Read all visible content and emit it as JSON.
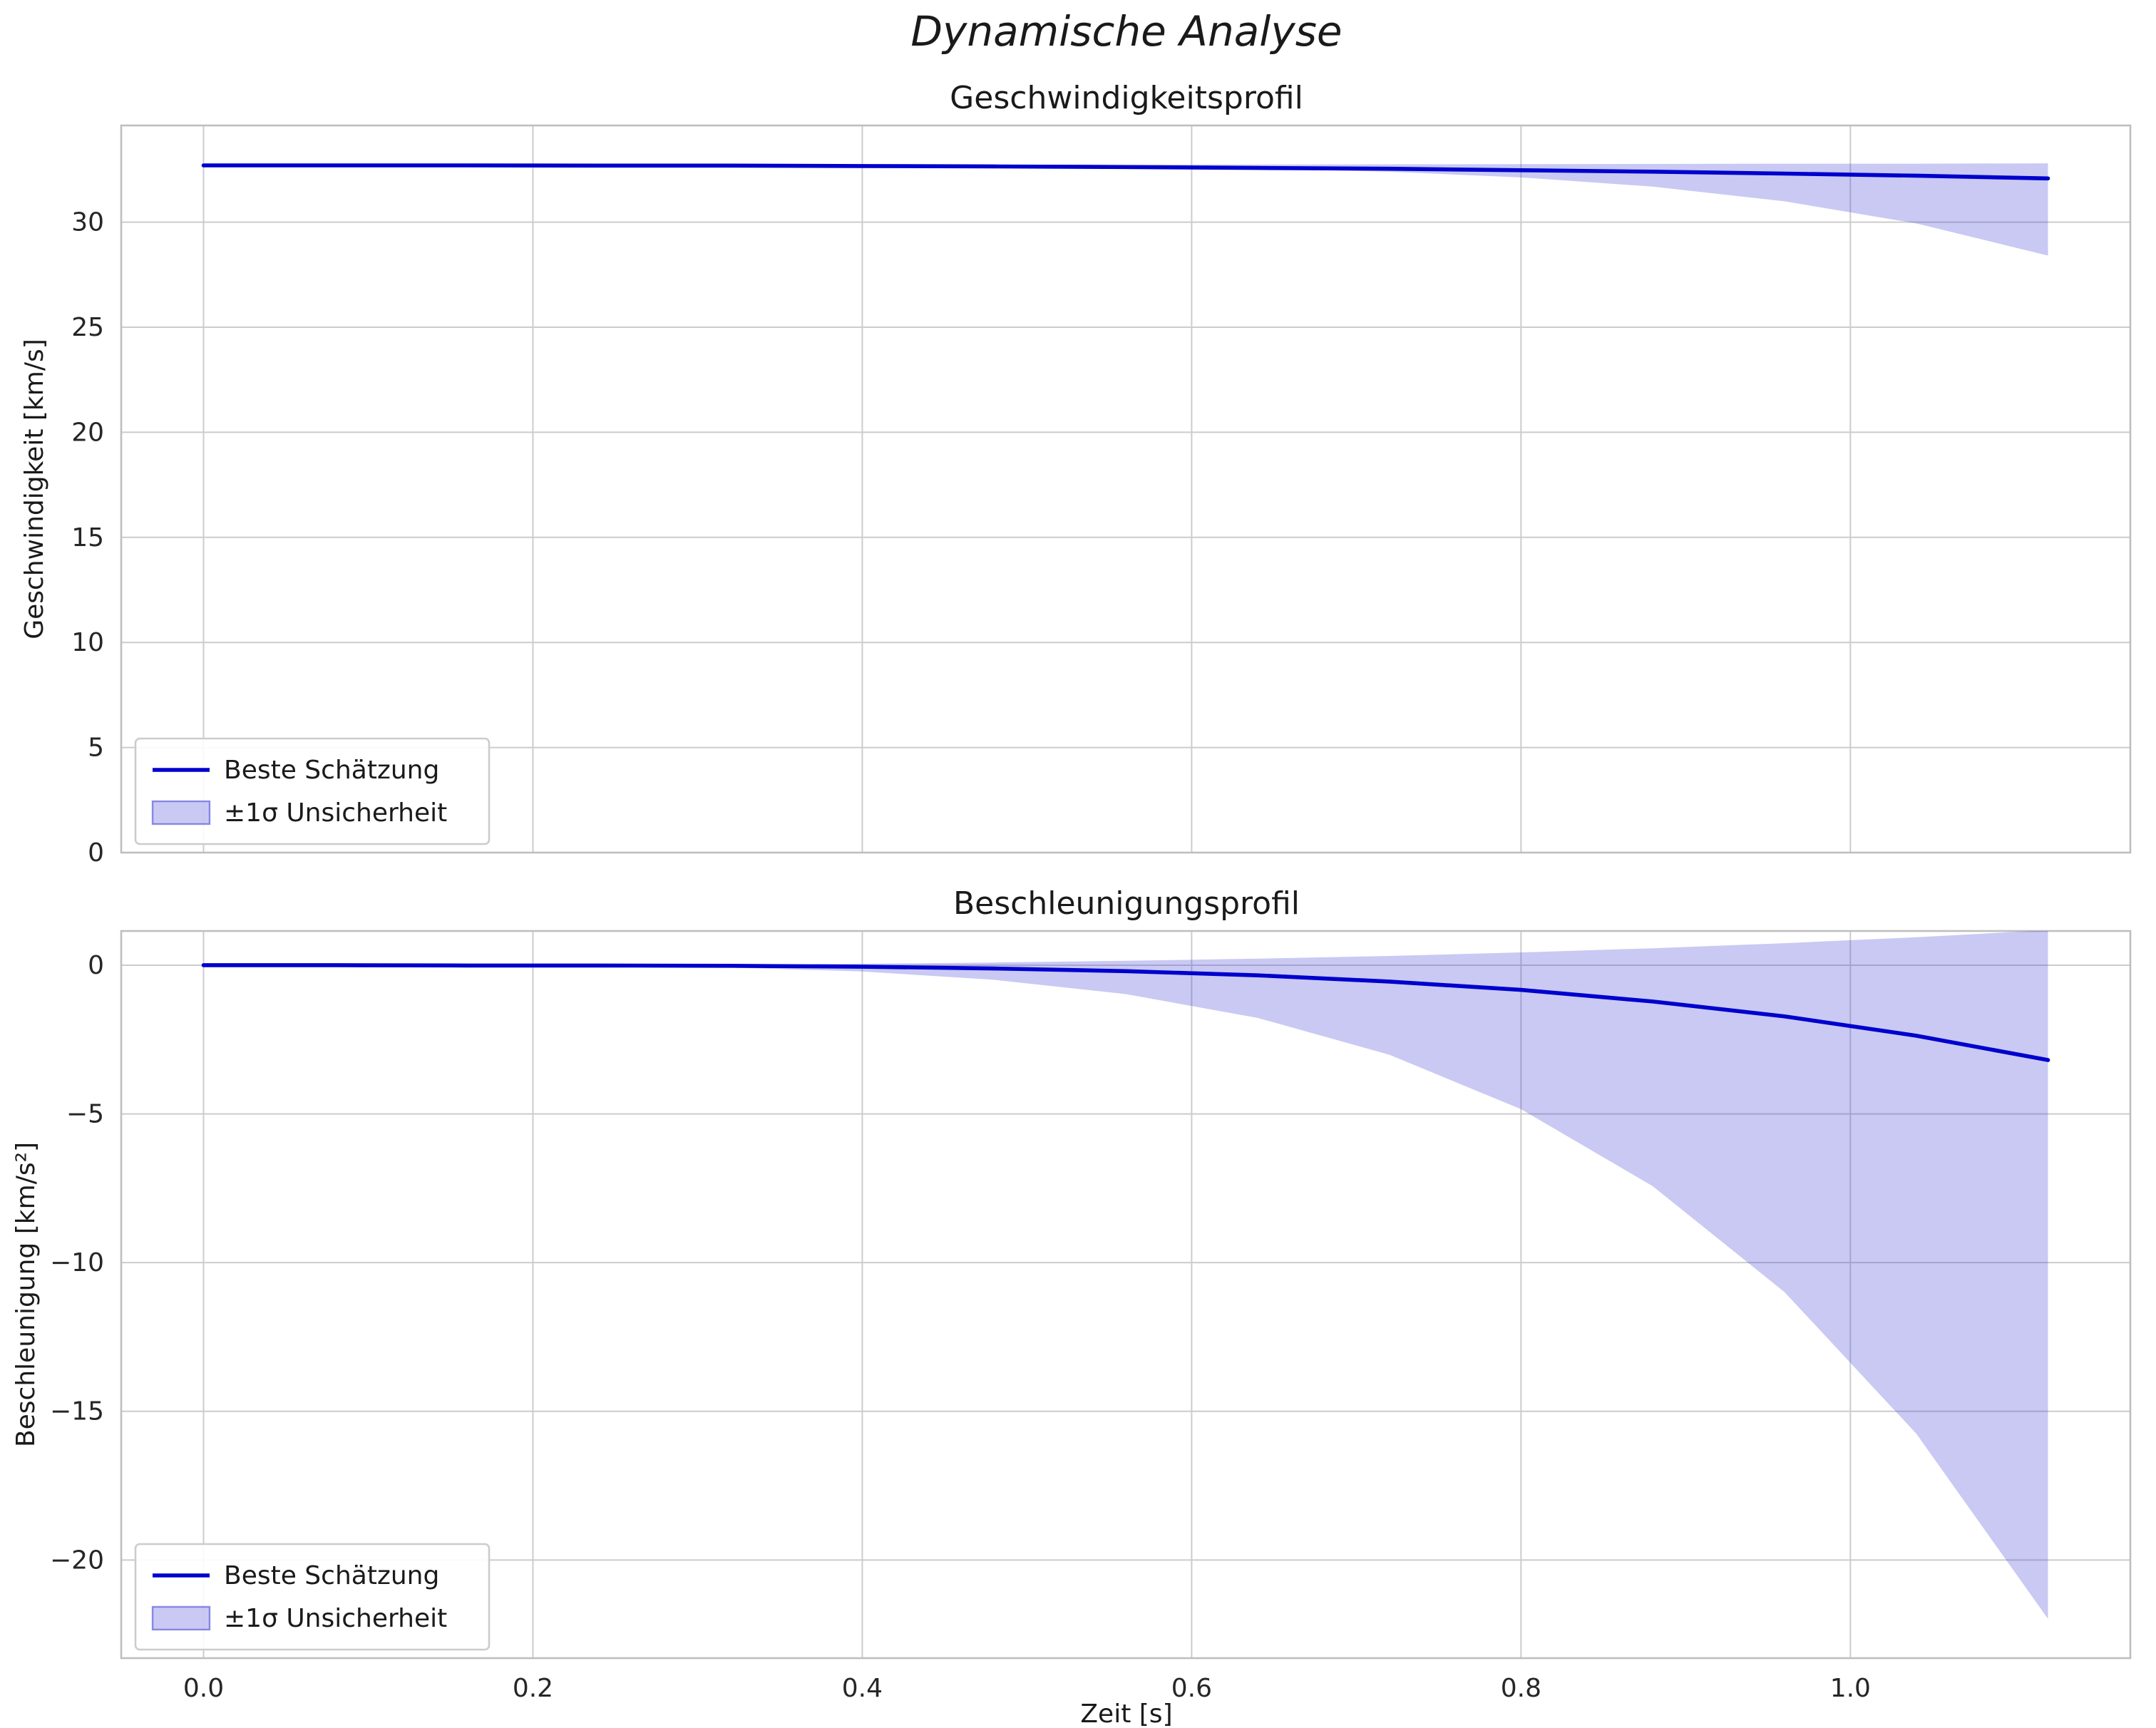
{
  "figure": {
    "title": "Dynamische Analyse",
    "xlabel": "Zeit [s]",
    "colors": {
      "background": "#ffffff",
      "line": "#0000cd",
      "band": "#3c3cd7",
      "band_opacity": 0.28,
      "grid": "#cccccc",
      "frame": "#bebebe",
      "text": "#1a1a1a"
    },
    "legend": {
      "line_label": "Beste Schätzung",
      "band_label": "±1σ Unsicherheit"
    }
  },
  "chart_data": [
    {
      "type": "line",
      "title": "Geschwindigkeitsprofil",
      "ylabel": "Geschwindigkeit [km/s]",
      "xlabel": "Zeit [s]",
      "grid": true,
      "legend_position": "lower left",
      "xlim": [
        -0.05,
        1.17
      ],
      "ylim": [
        0,
        34.6
      ],
      "xticks": [
        0,
        0.2,
        0.4,
        0.6,
        0.8,
        1.0
      ],
      "xtick_labels": [
        "0.0",
        "0.2",
        "0.4",
        "0.6",
        "0.8",
        "1.0"
      ],
      "show_xtick_labels": false,
      "yticks": [
        0,
        5,
        10,
        15,
        20,
        25,
        30
      ],
      "ytick_labels": [
        "0",
        "5",
        "10",
        "15",
        "20",
        "25",
        "30"
      ],
      "x": [
        0,
        0.08,
        0.16,
        0.24,
        0.32,
        0.4,
        0.48,
        0.56,
        0.64,
        0.72,
        0.8,
        0.88,
        0.96,
        1.04,
        1.12
      ],
      "series": [
        {
          "name": "Beste Schätzung",
          "values": [
            32.7,
            32.7,
            32.7,
            32.69,
            32.69,
            32.67,
            32.65,
            32.62,
            32.58,
            32.54,
            32.47,
            32.4,
            32.31,
            32.21,
            32.08
          ]
        }
      ],
      "band": {
        "name": "±1σ Unsicherheit",
        "upper": [
          32.72,
          32.72,
          32.72,
          32.72,
          32.73,
          32.73,
          32.73,
          32.74,
          32.74,
          32.75,
          32.76,
          32.77,
          32.78,
          32.78,
          32.8
        ],
        "lower": [
          32.7,
          32.7,
          32.7,
          32.7,
          32.7,
          32.69,
          32.67,
          32.63,
          32.55,
          32.4,
          32.13,
          31.69,
          30.99,
          29.94,
          28.41
        ]
      }
    },
    {
      "type": "line",
      "title": "Beschleunigungsprofil",
      "ylabel": "Beschleunigung [km/s²]",
      "xlabel": "Zeit [s]",
      "grid": true,
      "legend_position": "lower left",
      "xlim": [
        -0.05,
        1.17
      ],
      "ylim": [
        -23.3,
        1.15
      ],
      "xticks": [
        0,
        0.2,
        0.4,
        0.6,
        0.8,
        1.0
      ],
      "xtick_labels": [
        "0.0",
        "0.2",
        "0.4",
        "0.6",
        "0.8",
        "1.0"
      ],
      "show_xtick_labels": true,
      "yticks": [
        0,
        -5,
        -10,
        -15,
        -20
      ],
      "ytick_labels": [
        "0",
        "−5",
        "−10",
        "−15",
        "−20"
      ],
      "x": [
        0,
        0.08,
        0.16,
        0.24,
        0.32,
        0.4,
        0.48,
        0.56,
        0.64,
        0.72,
        0.8,
        0.88,
        0.96,
        1.04,
        1.12
      ],
      "series": [
        {
          "name": "Beste Schätzung",
          "values": [
            0,
            0,
            -0.01,
            -0.01,
            -0.02,
            -0.05,
            -0.11,
            -0.2,
            -0.34,
            -0.55,
            -0.83,
            -1.22,
            -1.72,
            -2.37,
            -3.19
          ]
        }
      ],
      "band": {
        "name": "±1σ Unsicherheit",
        "upper": [
          0,
          0.01,
          0.01,
          0.02,
          0.03,
          0.05,
          0.09,
          0.15,
          0.22,
          0.31,
          0.43,
          0.57,
          0.74,
          0.94,
          1.18
        ],
        "lower": [
          0,
          -0.01,
          -0.02,
          -0.03,
          -0.08,
          -0.21,
          -0.49,
          -0.97,
          -1.77,
          -3.01,
          -4.84,
          -7.43,
          -10.99,
          -15.75,
          -21.98
        ]
      }
    }
  ]
}
